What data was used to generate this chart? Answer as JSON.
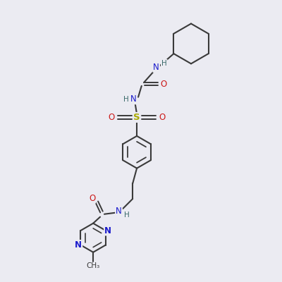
{
  "background_color": "#ebebf2",
  "atom_colors": {
    "C": "#3a3a3a",
    "N": "#1a1acc",
    "O": "#cc1a1a",
    "S": "#aaaa00",
    "H": "#3a6a6a"
  },
  "bond_color": "#3a3a3a",
  "bond_color_dark": "#4a4a5a",
  "figsize": [
    4.0,
    4.0
  ],
  "dpi": 100
}
